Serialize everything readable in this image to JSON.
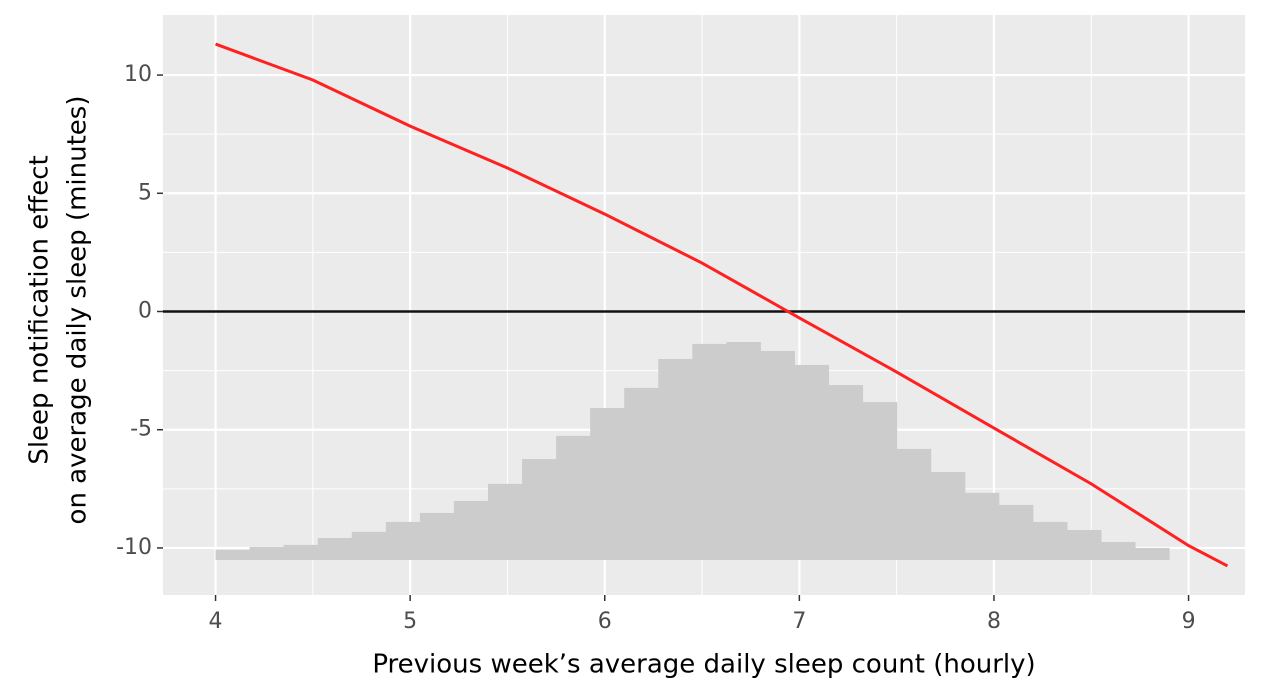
{
  "chart_data": {
    "type": "line-histogram",
    "xlabel": "Previous week’s average daily sleep count (hourly)",
    "ylabel": [
      "Sleep notification effect",
      "on average daily sleep (minutes)"
    ],
    "xlim": [
      3.73,
      9.29
    ],
    "ylim": [
      -11.99,
      12.54
    ],
    "xticks": [
      4,
      5,
      6,
      7,
      8,
      9
    ],
    "yticks": [
      -10,
      -5,
      0,
      5,
      10
    ],
    "minor_xticks": [
      4.5,
      5.5,
      6.5,
      7.5,
      8.5
    ],
    "minor_yticks": [
      -7.5,
      -2.5,
      2.5,
      7.5
    ],
    "grid": true,
    "hline": 0,
    "histogram": {
      "color": "#cccccc",
      "base": -10.51,
      "bins": [
        4.0,
        4.175,
        4.35,
        4.525,
        4.7,
        4.875,
        5.05,
        5.225,
        5.4,
        5.575,
        5.75,
        5.925,
        6.1,
        6.275,
        6.45,
        6.625,
        6.8,
        6.975,
        7.15,
        7.325,
        7.5,
        7.675,
        7.85,
        8.025,
        8.2,
        8.375,
        8.55,
        8.725,
        8.9
      ],
      "values": [
        -10.08,
        -9.96,
        -9.87,
        -9.58,
        -9.32,
        -8.9,
        -8.52,
        -8.01,
        -7.29,
        -6.24,
        -5.26,
        -4.08,
        -3.23,
        -2.01,
        -1.37,
        -1.29,
        -1.67,
        -2.26,
        -3.11,
        -3.83,
        -5.81,
        -6.79,
        -7.67,
        -8.18,
        -8.9,
        -9.24,
        -9.75,
        -10.0
      ]
    },
    "line": {
      "color": "#ff2020",
      "x": [
        4,
        4.5,
        5,
        5.5,
        6,
        6.5,
        7,
        7.5,
        8,
        8.5,
        9,
        9.2
      ],
      "values": [
        11.31,
        9.79,
        7.84,
        6.07,
        4.12,
        2.05,
        -0.27,
        -2.56,
        -4.93,
        -7.29,
        -9.9,
        -10.76
      ]
    }
  }
}
